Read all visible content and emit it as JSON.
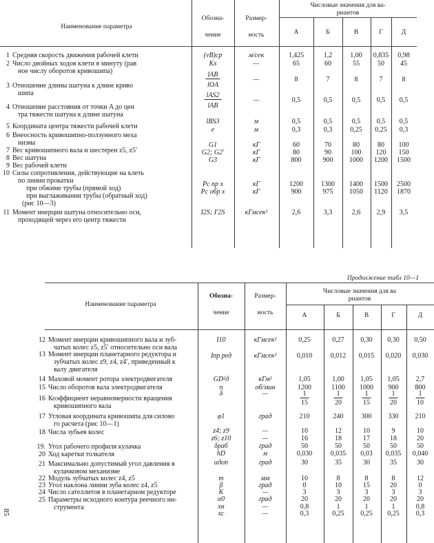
{
  "header": {
    "name_col": "Наименование параметра",
    "symbol_col": [
      "Обозна-",
      "чение"
    ],
    "unit_col": [
      "Размер-",
      "ность"
    ],
    "values_col_top": [
      "Числовые значения для ва-",
      "риантов"
    ],
    "values_col_bottom": [
      "Числовые значения для ва",
      "риантов"
    ],
    "variants": [
      "А",
      "Б",
      "В",
      "Г",
      "Д"
    ]
  },
  "continuation_label": "Продолжение табл 10—1",
  "page_number": "85",
  "top_table": [
    {
      "num": "1",
      "lines": [
        "Средняя скорость движения рабочей клети"
      ],
      "entries": [
        {
          "symbol": "(vB)ср",
          "unit": "м/сек",
          "values": [
            "1,425",
            "1,2",
            "1,00",
            "0,835",
            "0,98"
          ]
        }
      ]
    },
    {
      "num": "2",
      "lines": [
        "Число двойных ходов клети в минуту (рав",
        "ное числу оборотов кривошипа)"
      ],
      "entries": [
        {
          "symbol": "Kх",
          "unit": "—",
          "values": [
            "65",
            "60",
            "55",
            "50",
            "45"
          ]
        }
      ]
    },
    {
      "num": "3",
      "lines": [
        "Отношение длины шатуна к длине криво",
        "шипа"
      ],
      "entries": [
        {
          "symbol_num": "lAB",
          "symbol_den": "lOA",
          "unit": "—",
          "values": [
            "8",
            "7",
            "8",
            "7",
            "8"
          ]
        }
      ]
    },
    {
      "num": "4",
      "lines": [
        "Отношение расстояния от точки A до цен",
        "тра тяжести шатуна к длине шатуна"
      ],
      "entries": [
        {
          "symbol_num": "lAS2",
          "symbol_den": "lAB",
          "unit": "—",
          "values": [
            "0,5",
            "0,5",
            "0,5",
            "0,5",
            "0,5"
          ]
        }
      ]
    },
    {
      "num": "5",
      "lines": [
        "Координата центра тяжести рабочей клети"
      ],
      "entries": [
        {
          "symbol": "lBS3",
          "unit": "м",
          "values": [
            "0,5",
            "0,5",
            "0,5",
            "0,5",
            "0,5"
          ]
        }
      ]
    },
    {
      "num": "6",
      "lines": [
        "Внеосность кривошипно-ползунного меха",
        "низма"
      ],
      "entries": [
        {
          "symbol": "e",
          "unit": "м",
          "values": [
            "0,3",
            "0,3",
            "0,25",
            "0,25",
            "0,3"
          ]
        }
      ]
    },
    {
      "num": "7",
      "lines": [
        "Вес кривошипного вала и шестерен z5, z5′"
      ],
      "entries": [
        {
          "symbol": "G1",
          "unit": "кГ",
          "values": [
            "60",
            "70",
            "80",
            "80",
            "100"
          ]
        }
      ]
    },
    {
      "num": "8",
      "lines": [
        "Вес шатуна"
      ],
      "entries": [
        {
          "symbol": "G2; G2′",
          "unit": "кГ",
          "values": [
            "80",
            "90",
            "100",
            "120",
            "150"
          ]
        }
      ]
    },
    {
      "num": "9",
      "lines": [
        "Вес рабочей клети"
      ],
      "entries": [
        {
          "symbol": "G3",
          "unit": "кГ",
          "values": [
            "800",
            "900",
            "1000",
            "1200",
            "1500"
          ]
        }
      ]
    },
    {
      "num": "10",
      "lines": [
        "Силы сопротивления, действующие на клеть",
        "по линии прокатки",
        "при обжиме трубы (прямой ход)",
        "при выглаживании трубы (обратный ход)",
        "(рис 10—3)"
      ],
      "entries": [
        {
          "symbol": "Pc пр x",
          "unit": "кГ",
          "values": [
            "1200",
            "1300",
            "1400",
            "1500",
            "2500"
          ]
        },
        {
          "symbol": "Pc обр x",
          "unit": "кГ",
          "values": [
            "900",
            "975",
            "1050",
            "1120",
            "1870"
          ]
        }
      ]
    },
    {
      "num": "11",
      "lines": [
        "Момент инерции шатуна относительно оси,",
        "проходящей через его центр тяжести"
      ],
      "entries": [
        {
          "symbol": "I2S; I′2S",
          "unit": "кГмсек²",
          "values": [
            "2,6",
            "3,3",
            "2,6",
            "2,9",
            "3,5"
          ]
        }
      ]
    }
  ],
  "bottom_table": [
    {
      "num": "12",
      "lines": [
        "Момент инерции кривошипного вала и зуб-",
        "чатых колес z5, z5′ относительно оси вала"
      ],
      "entries": [
        {
          "symbol": "I10",
          "unit": "кГмсек²",
          "values": [
            "0,25",
            "0,27",
            "0,30",
            "0,30",
            "0,50"
          ]
        }
      ]
    },
    {
      "num": "13",
      "lines": [
        "Момент инерции планетарного редуктора и",
        "зубчатых колес z9, z4, z4′, приведенный к",
        "валу двигателя"
      ],
      "entries": [
        {
          "symbol": "Iпр ред",
          "unit": "кГмсек²",
          "values": [
            "0,010",
            "0,012",
            "0,015",
            "0,020",
            "0,030"
          ]
        }
      ]
    },
    {
      "num": "14",
      "lines": [
        "Маховой момент ротора электродвигателя"
      ],
      "entries": [
        {
          "symbol": "GD²д",
          "unit": "кГм²",
          "values": [
            "1,05",
            "1,00",
            "1,05",
            "1,05",
            "2,7"
          ]
        }
      ]
    },
    {
      "num": "15",
      "lines": [
        "Число оборотов вала электродвигателя"
      ],
      "entries": [
        {
          "symbol": "n",
          "unit": "об/мин",
          "values": [
            "1200",
            "1100",
            "1000",
            "900",
            "800"
          ]
        }
      ]
    },
    {
      "num": "16",
      "lines": [
        "Коэффициент неравномерности вращения",
        "кривошипного вала"
      ],
      "entries": [
        {
          "symbol": "δ",
          "unit": "—",
          "fractions": [
            [
              "1",
              "15"
            ],
            [
              "1",
              "20"
            ],
            [
              "1",
              "15"
            ],
            [
              "1",
              "20"
            ],
            [
              "1",
              "10"
            ]
          ]
        }
      ]
    },
    {
      "num": "17",
      "lines": [
        "Угловая координата кривошипа для силово",
        "го расчета (рис 10—1)"
      ],
      "entries": [
        {
          "symbol": "φ1",
          "unit": "град",
          "values": [
            "210",
            "240",
            "300",
            "330",
            "210"
          ]
        }
      ]
    },
    {
      "num": "18",
      "lines": [
        "Числа зубьев колес"
      ],
      "entries": [
        {
          "symbol": "z4; z9",
          "unit": "—",
          "values": [
            "10",
            "12",
            "10",
            "9",
            "10"
          ]
        },
        {
          "symbol": "z6; z10",
          "unit": "—",
          "values": [
            "16",
            "18",
            "17",
            "18",
            "20"
          ]
        }
      ]
    },
    {
      "num": "19.",
      "lines": [
        "Угол рабочего профиля кулачка"
      ],
      "entries": [
        {
          "symbol": "δраб",
          "unit": "град",
          "values": [
            "50",
            "50",
            "50",
            "50",
            "50"
          ]
        }
      ]
    },
    {
      "num": "20",
      "lines": [
        "Ход каретки толкателя"
      ],
      "entries": [
        {
          "symbol": "hD",
          "unit": "м",
          "values": [
            "0,030",
            "0,035",
            "0,03",
            "0,035",
            "0,040"
          ]
        }
      ]
    },
    {
      "num": "21",
      "lines": [
        "Максимально допустимый угол давления в",
        "кулачковом механизме"
      ],
      "entries": [
        {
          "symbol": "αдоп",
          "unit": "град",
          "values": [
            "30",
            "35",
            "30",
            "35",
            "30"
          ]
        }
      ]
    },
    {
      "num": "22",
      "lines": [
        "Модуль зубчатых колес z4, z5"
      ],
      "entries": [
        {
          "symbol": "m",
          "unit": "мм",
          "values": [
            "10",
            "8",
            "8",
            "8",
            "12"
          ]
        }
      ]
    },
    {
      "num": "23",
      "lines": [
        "Угол наклона линии зуба колес z4, z5"
      ],
      "entries": [
        {
          "symbol": "β",
          "unit": "град",
          "values": [
            "0",
            "10",
            "15",
            "20",
            "0"
          ]
        }
      ]
    },
    {
      "num": "24",
      "lines": [
        "Число сателлитов в планетарном редукторе"
      ],
      "entries": [
        {
          "symbol": "K",
          "unit": "—",
          "values": [
            "3",
            "3",
            "3",
            "3",
            "3"
          ]
        }
      ]
    },
    {
      "num": "25",
      "lines": [
        "Параметры исходного контура реечного ин-",
        "струмента"
      ],
      "entries": [
        {
          "symbol": "α0",
          "unit": "град",
          "values": [
            "20",
            "20",
            "20",
            "20",
            "20"
          ]
        },
        {
          "symbol": "xн",
          "unit": "—",
          "values": [
            "0,8",
            "1",
            "1",
            "1",
            "0,8"
          ]
        },
        {
          "symbol": "xc",
          "unit": "—",
          "values": [
            "0,3",
            "0,25",
            "0,25",
            "0,25",
            "0,3"
          ]
        }
      ]
    }
  ]
}
